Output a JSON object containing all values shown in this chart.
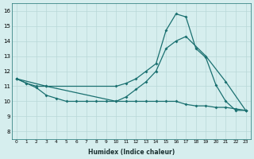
{
  "xlabel": "Humidex (Indice chaleur)",
  "xlim": [
    -0.5,
    23.5
  ],
  "ylim": [
    7.5,
    16.5
  ],
  "xtick_labels": [
    "0",
    "1",
    "2",
    "3",
    "4",
    "5",
    "6",
    "7",
    "8",
    "9",
    "10",
    "11",
    "12",
    "13",
    "14",
    "15",
    "16",
    "17",
    "18",
    "19",
    "20",
    "21",
    "22",
    "23"
  ],
  "ytick_values": [
    8,
    9,
    10,
    11,
    12,
    13,
    14,
    15,
    16
  ],
  "background_color": "#d6eeee",
  "grid_color": "#b8d8d8",
  "line_color": "#1a7070",
  "line1_x": [
    0,
    1,
    2,
    3,
    10,
    11,
    12,
    13,
    14,
    15,
    16,
    17,
    18,
    19,
    20,
    21,
    22,
    23
  ],
  "line1_y": [
    11.5,
    11.2,
    11.0,
    11.0,
    11.0,
    11.2,
    11.5,
    12.0,
    12.5,
    14.7,
    15.8,
    15.6,
    13.5,
    12.9,
    11.1,
    10.0,
    9.4,
    9.4
  ],
  "line2_x": [
    0,
    3,
    10,
    11,
    12,
    13,
    14,
    15,
    16,
    17,
    19,
    21,
    23
  ],
  "line2_y": [
    11.5,
    11.0,
    10.0,
    10.3,
    10.8,
    11.3,
    12.0,
    13.5,
    14.0,
    14.3,
    13.0,
    11.3,
    9.4
  ],
  "line3_x": [
    0,
    1,
    2,
    3,
    4,
    5,
    6,
    7,
    8,
    9,
    10,
    11,
    12,
    13,
    14,
    15,
    16,
    17,
    18,
    19,
    20,
    21,
    22,
    23
  ],
  "line3_y": [
    11.5,
    11.2,
    10.9,
    10.4,
    10.2,
    10.0,
    10.0,
    10.0,
    10.0,
    10.0,
    10.0,
    10.0,
    10.0,
    10.0,
    10.0,
    10.0,
    10.0,
    9.8,
    9.7,
    9.7,
    9.6,
    9.6,
    9.5,
    9.4
  ]
}
